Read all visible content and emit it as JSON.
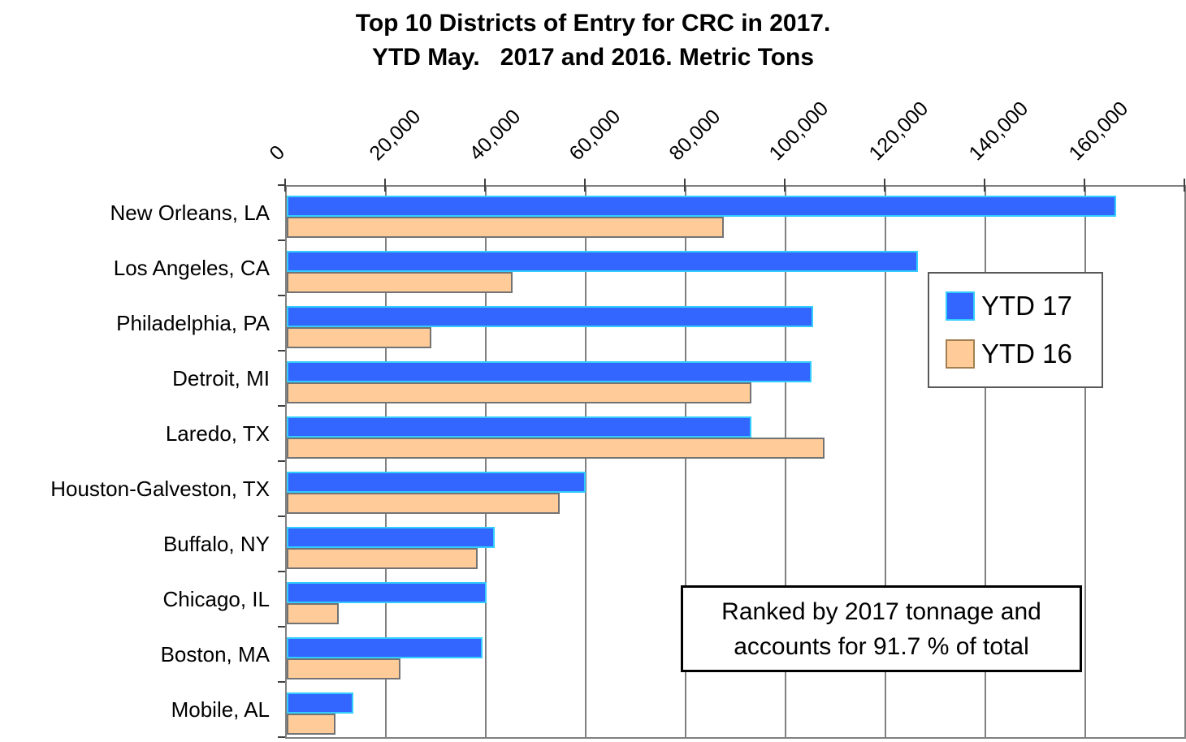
{
  "chart_data": {
    "type": "bar",
    "orientation": "horizontal",
    "title_line1": "Top 10 Districts of Entry for CRC in 2017.",
    "title_line2": "YTD May.   2017 and 2016. Metric Tons",
    "categories": [
      "New Orleans, LA",
      "Los Angeles, CA",
      "Philadelphia, PA",
      "Detroit, MI",
      "Laredo, TX",
      "Houston-Galveston, TX",
      "Buffalo, NY",
      "Chicago, IL",
      "Boston, MA",
      "Mobile, AL"
    ],
    "series": [
      {
        "name": "YTD 17",
        "color": "#3366FF",
        "border_color": "#33CCFF",
        "values": [
          166000,
          126300,
          105300,
          105000,
          93000,
          59900,
          41700,
          40000,
          39200,
          13400
        ]
      },
      {
        "name": "YTD 16",
        "color": "#FFCC99",
        "border_color": "#737373",
        "values": [
          87500,
          45200,
          29000,
          93000,
          107600,
          54600,
          38200,
          10400,
          22800,
          9800
        ]
      }
    ],
    "x_ticks": [
      "0",
      "20,000",
      "40,000",
      "60,000",
      "80,000",
      "100,000",
      "120,000",
      "140,000",
      "160,000"
    ],
    "x_tick_values": [
      0,
      20000,
      40000,
      60000,
      80000,
      100000,
      120000,
      140000,
      160000
    ],
    "xlim": [
      0,
      180000
    ],
    "grid": "vertical",
    "gridline_color": "#808080",
    "legend_position": "right-center",
    "annotation_line1": "Ranked by 2017 tonnage and",
    "annotation_line2": "accounts for 91.7 % of total"
  }
}
